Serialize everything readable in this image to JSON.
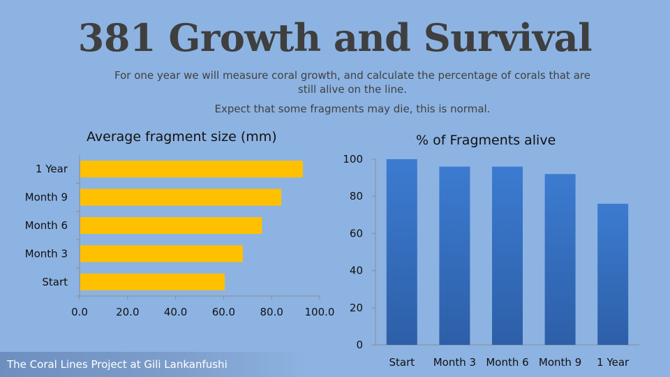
{
  "slide": {
    "title": "381 Growth and Survival",
    "subtitle_line1": "For one year we will measure coral growth, and calculate the percentage of corals that are still alive on the line.",
    "subtitle_line2": "Expect that some fragments may die, this is normal.",
    "footer": "The Coral Lines Project at Gili Lankanfushi"
  },
  "colors": {
    "background": "#8db3e2",
    "bar_left": "#ffc000",
    "bar_right": "#3b74c2"
  },
  "chart_data": [
    {
      "type": "bar",
      "orientation": "horizontal",
      "title": "Average fragment size (mm)",
      "categories": [
        "Start",
        "Month 3",
        "Month 6",
        "Month 9",
        "1 Year"
      ],
      "values": [
        60.5,
        68,
        76,
        84,
        93
      ],
      "xlim": [
        0,
        100
      ],
      "xticks": [
        "0.0",
        "20.0",
        "40.0",
        "60.0",
        "80.0",
        "100.0"
      ],
      "grid": false,
      "legend": "none"
    },
    {
      "type": "bar",
      "orientation": "vertical",
      "title": "% of Fragments alive",
      "categories": [
        "Start",
        "Month 3",
        "Month 6",
        "Month 9",
        "1 Year"
      ],
      "values": [
        100,
        96,
        96,
        92,
        76
      ],
      "ylim": [
        0,
        100
      ],
      "yticks": [
        "0",
        "20",
        "40",
        "60",
        "80",
        "100"
      ],
      "grid": false,
      "legend": "none"
    }
  ]
}
